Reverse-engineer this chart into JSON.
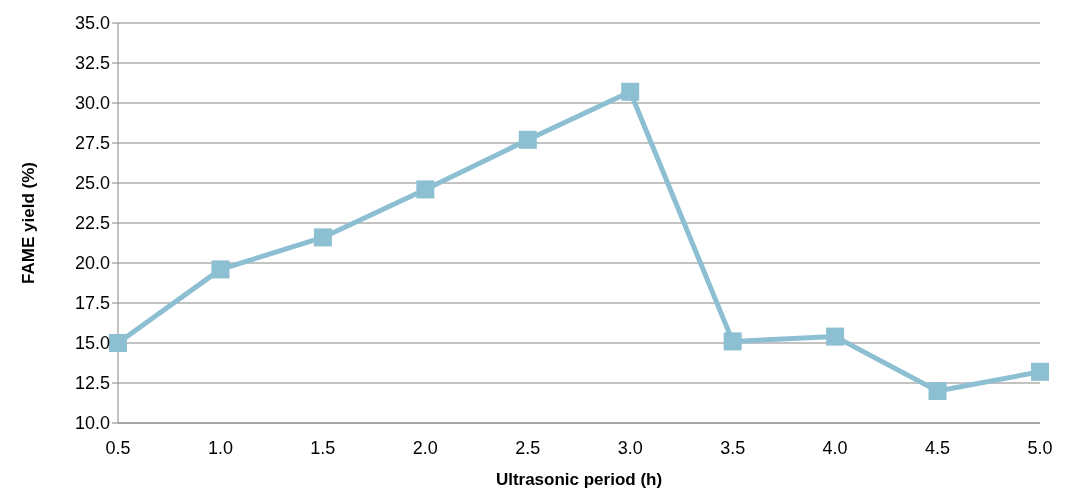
{
  "chart_data": {
    "type": "line",
    "xlabel": "Ultrasonic period (h)",
    "ylabel": "FAME yield (%)",
    "categories": [
      "0.5",
      "1.0",
      "1.5",
      "2.0",
      "2.5",
      "3.0",
      "3.5",
      "4.0",
      "4.5",
      "5.0"
    ],
    "series": [
      {
        "color": "#8dbfd3",
        "values": [
          15.0,
          19.6,
          21.6,
          24.6,
          27.7,
          30.7,
          15.1,
          15.4,
          12.0,
          13.2
        ]
      }
    ],
    "ylim": [
      10,
      35
    ],
    "yticks": [
      {
        "value": 10,
        "label": "10.0"
      },
      {
        "value": 12.5,
        "label": "12.5"
      },
      {
        "value": 15,
        "label": "15.0"
      },
      {
        "value": 17.5,
        "label": "17.5"
      },
      {
        "value": 20,
        "label": "20.0"
      },
      {
        "value": 22.5,
        "label": "22.5"
      },
      {
        "value": 25,
        "label": "25.0"
      },
      {
        "value": 27.5,
        "label": "27.5"
      },
      {
        "value": 30,
        "label": "30.0"
      },
      {
        "value": 32.5,
        "label": "32.5"
      },
      {
        "value": 35,
        "label": "35.0"
      }
    ],
    "grid": "y",
    "marker": "square",
    "line_style": "solid",
    "legend": false
  }
}
